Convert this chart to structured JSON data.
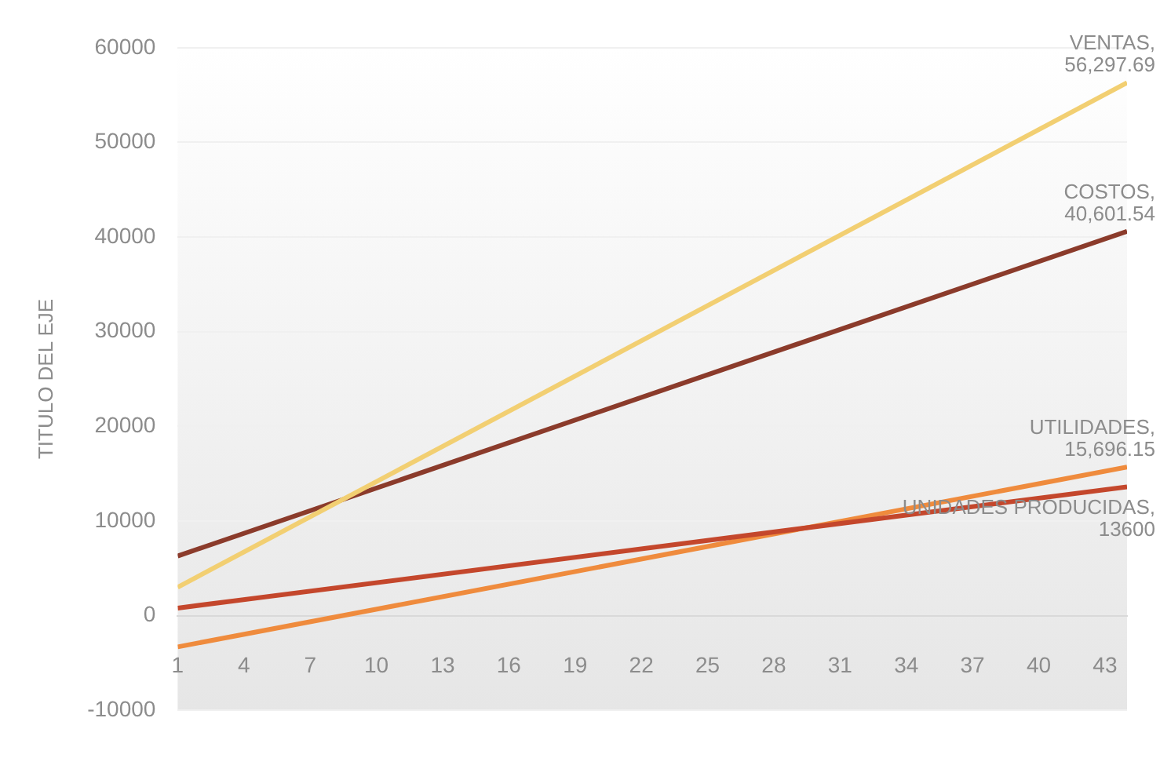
{
  "chart_data": {
    "type": "line",
    "ylabel": "TITULO DEL EJE",
    "x": [
      1,
      44
    ],
    "series": [
      {
        "name": "VENTAS,",
        "color": "#f2cf72",
        "values": [
          3000,
          56297.69
        ],
        "value_labels": [
          null,
          "56,297.69"
        ]
      },
      {
        "name": "COSTOS,",
        "color": "#8b3b2b",
        "values": [
          6300,
          40601.54
        ],
        "value_labels": [
          null,
          "40,601.54"
        ]
      },
      {
        "name": "UNIDADES PRODUCIDAS,",
        "color": "#c4472c",
        "values": [
          800,
          13600
        ],
        "value_labels": [
          null,
          "13600"
        ]
      },
      {
        "name": "UTILIDADES,",
        "color": "#ef8b3d",
        "values": [
          -3300,
          15696.15
        ],
        "value_labels": [
          null,
          "15,696.15"
        ]
      }
    ],
    "xlim": [
      1,
      44
    ],
    "xticks": [
      1,
      4,
      7,
      10,
      13,
      16,
      19,
      22,
      25,
      28,
      31,
      34,
      37,
      40,
      43
    ],
    "ylim": [
      -10000,
      60000
    ],
    "yticks": [
      -10000,
      0,
      10000,
      20000,
      30000,
      40000,
      50000,
      60000
    ],
    "grid": "y",
    "legend": false,
    "marker": "none",
    "line_style": "solid"
  }
}
